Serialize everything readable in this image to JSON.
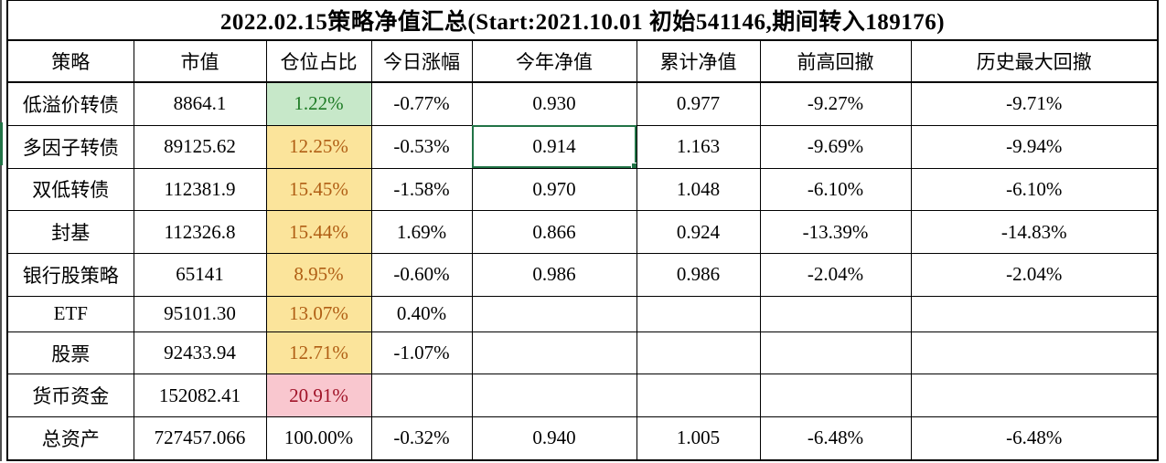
{
  "title": "2022.02.15策略净值汇总(Start:2021.10.01 初始541146,期间转入189176)",
  "table": {
    "columns": [
      "策略",
      "市值",
      "仓位占比",
      "今日涨幅",
      "今年净值",
      "累计净值",
      "前高回撤",
      "历史最大回撤"
    ],
    "rows": [
      {
        "cells": [
          "低溢价转债",
          "8864.1",
          "1.22%",
          "-0.77%",
          "0.930",
          "0.977",
          "-9.27%",
          "-9.71%"
        ],
        "position_style": "green"
      },
      {
        "cells": [
          "多因子转债",
          "89125.62",
          "12.25%",
          "-0.53%",
          "0.914",
          "1.163",
          "-9.69%",
          "-9.94%"
        ],
        "position_style": "yellow"
      },
      {
        "cells": [
          "双低转债",
          "112381.9",
          "15.45%",
          "-1.58%",
          "0.970",
          "1.048",
          "-6.10%",
          "-6.10%"
        ],
        "position_style": "yellow"
      },
      {
        "cells": [
          "封基",
          "112326.8",
          "15.44%",
          "1.69%",
          "0.866",
          "0.924",
          "-13.39%",
          "-14.83%"
        ],
        "position_style": "yellow"
      },
      {
        "cells": [
          "银行股策略",
          "65141",
          "8.95%",
          "-0.60%",
          "0.986",
          "0.986",
          "-2.04%",
          "-2.04%"
        ],
        "position_style": "yellow"
      },
      {
        "cells": [
          "ETF",
          "95101.30",
          "13.07%",
          "0.40%",
          "",
          "",
          "",
          ""
        ],
        "position_style": "yellow"
      },
      {
        "cells": [
          "股票",
          "92433.94",
          "12.71%",
          "-1.07%",
          "",
          "",
          "",
          ""
        ],
        "position_style": "yellow"
      },
      {
        "cells": [
          "货币资金",
          "152082.41",
          "20.91%",
          "",
          "",
          "",
          "",
          ""
        ],
        "position_style": "red"
      },
      {
        "cells": [
          "总资产",
          "727457.066",
          "100.00%",
          "-0.32%",
          "0.940",
          "1.005",
          "-6.48%",
          "-6.48%"
        ],
        "position_style": "none"
      }
    ],
    "selection": {
      "row": 1,
      "col": 4,
      "value": "0.914"
    }
  },
  "colors": {
    "positive_green_bg": "#C7E8C9",
    "positive_green_text": "#1E7B25",
    "warn_yellow_bg": "#FBE49B",
    "warn_yellow_text": "#B05E14",
    "alert_pink_bg": "#F9C7CF",
    "alert_pink_text": "#A01328",
    "selection_border": "#217346",
    "grid_border": "#000000"
  }
}
